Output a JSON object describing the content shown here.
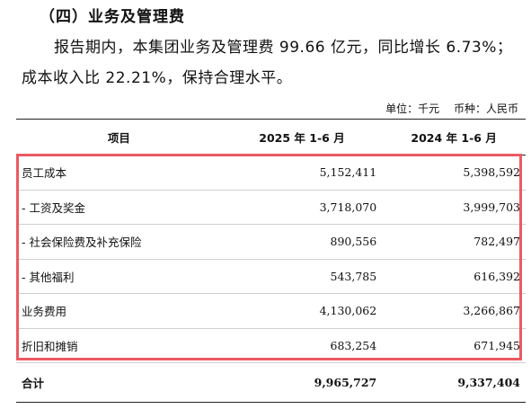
{
  "heading": "（四）业务及管理费",
  "paragraph": "报告期内，本集团业务及管理费 99.66 亿元，同比增长 6.73%；成本收入比 22.21%，保持合理水平。",
  "unit": {
    "unit_label": "单位：千元",
    "currency_label": "币种：人民币"
  },
  "table": {
    "headers": [
      "项目",
      "2025 年 1-6 月",
      "2024 年 1-6 月"
    ],
    "rows": [
      {
        "item": "员工成本",
        "y2025": "5,152,411",
        "y2024": "5,398,592"
      },
      {
        "item": "- 工资及奖金",
        "y2025": "3,718,070",
        "y2024": "3,999,703"
      },
      {
        "item": "- 社会保险费及补充保险",
        "y2025": "890,556",
        "y2024": "782,497"
      },
      {
        "item": "- 其他福利",
        "y2025": "543,785",
        "y2024": "616,392"
      },
      {
        "item": "业务费用",
        "y2025": "4,130,062",
        "y2024": "3,266,867"
      },
      {
        "item": "折旧和摊销",
        "y2025": "683,254",
        "y2024": "671,945"
      }
    ],
    "total": {
      "item": "合计",
      "y2025": "9,965,727",
      "y2024": "9,337,404"
    }
  },
  "colors": {
    "highlight_border": "#ea5a63"
  }
}
